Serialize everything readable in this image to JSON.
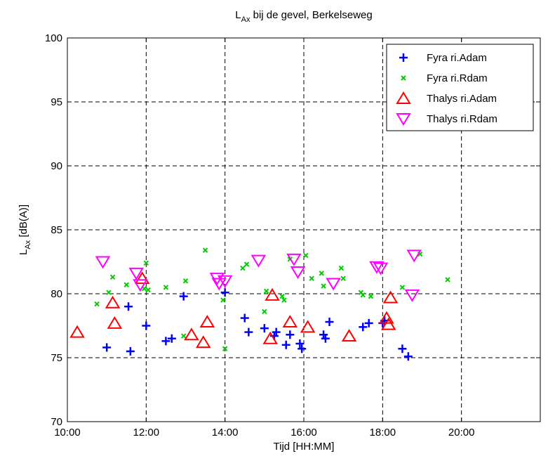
{
  "chart_data": {
    "type": "scatter",
    "title": "L",
    "title_sub": "Ax",
    "title_rest": " bij de gevel, Berkelseweg",
    "xlabel": "Tijd [HH:MM]",
    "ylabel": "L",
    "ylabel_sub": "Ax",
    "ylabel_rest": " [dB(A)]",
    "xlim": [
      "10:00",
      "22:00"
    ],
    "ylim": [
      70,
      100
    ],
    "x_ticks": [
      "10:00",
      "12:00",
      "14:00",
      "16:00",
      "18:00",
      "20:00"
    ],
    "y_ticks": [
      70,
      75,
      80,
      85,
      90,
      95,
      100
    ],
    "grid": true,
    "legend_position": "top-right",
    "series": [
      {
        "name": "Fyra ri.Adam",
        "marker": "plus",
        "color": "#0000ff",
        "points": [
          [
            "11:00",
            75.8
          ],
          [
            "11:33",
            79.0
          ],
          [
            "11:36",
            75.5
          ],
          [
            "12:00",
            77.5
          ],
          [
            "12:30",
            76.3
          ],
          [
            "12:39",
            76.5
          ],
          [
            "12:57",
            79.8
          ],
          [
            "14:00",
            80.1
          ],
          [
            "14:30",
            78.1
          ],
          [
            "14:36",
            77.0
          ],
          [
            "15:00",
            77.3
          ],
          [
            "15:15",
            76.7
          ],
          [
            "15:18",
            77.0
          ],
          [
            "15:33",
            76.0
          ],
          [
            "15:39",
            76.8
          ],
          [
            "15:54",
            76.1
          ],
          [
            "15:57",
            75.7
          ],
          [
            "16:30",
            76.8
          ],
          [
            "16:33",
            76.5
          ],
          [
            "16:39",
            77.8
          ],
          [
            "17:30",
            77.4
          ],
          [
            "17:39",
            77.7
          ],
          [
            "18:00",
            77.7
          ],
          [
            "18:03",
            77.9
          ],
          [
            "18:30",
            75.7
          ],
          [
            "18:39",
            75.1
          ]
        ]
      },
      {
        "name": "Fyra ri.Rdam",
        "marker": "x",
        "color": "#00cc00",
        "points": [
          [
            "10:45",
            79.2
          ],
          [
            "11:03",
            80.1
          ],
          [
            "11:09",
            81.3
          ],
          [
            "11:30",
            80.7
          ],
          [
            "11:57",
            80.4
          ],
          [
            "12:00",
            82.4
          ],
          [
            "12:03",
            80.3
          ],
          [
            "12:30",
            80.5
          ],
          [
            "12:57",
            76.7
          ],
          [
            "13:00",
            81.0
          ],
          [
            "13:30",
            83.4
          ],
          [
            "13:57",
            79.5
          ],
          [
            "14:00",
            75.7
          ],
          [
            "14:27",
            82.0
          ],
          [
            "14:33",
            82.3
          ],
          [
            "15:00",
            78.6
          ],
          [
            "15:03",
            80.2
          ],
          [
            "15:27",
            79.8
          ],
          [
            "15:30",
            79.5
          ],
          [
            "15:39",
            82.7
          ],
          [
            "16:03",
            83.0
          ],
          [
            "16:12",
            81.2
          ],
          [
            "16:27",
            81.6
          ],
          [
            "16:30",
            80.6
          ],
          [
            "16:57",
            82.0
          ],
          [
            "17:00",
            81.2
          ],
          [
            "17:27",
            80.1
          ],
          [
            "17:30",
            79.9
          ],
          [
            "17:42",
            79.8
          ],
          [
            "18:30",
            80.5
          ],
          [
            "18:57",
            83.1
          ],
          [
            "19:39",
            81.1
          ]
        ]
      },
      {
        "name": "Thalys ri.Adam",
        "marker": "triangle-up",
        "color": "#ff0000",
        "points": [
          [
            "10:15",
            77.0
          ],
          [
            "11:09",
            79.3
          ],
          [
            "11:12",
            77.7
          ],
          [
            "11:54",
            81.2
          ],
          [
            "13:09",
            76.8
          ],
          [
            "13:27",
            76.2
          ],
          [
            "13:33",
            77.8
          ],
          [
            "15:12",
            79.9
          ],
          [
            "15:09",
            76.5
          ],
          [
            "15:39",
            77.8
          ],
          [
            "16:06",
            77.4
          ],
          [
            "17:09",
            76.7
          ],
          [
            "18:06",
            78.1
          ],
          [
            "18:09",
            77.6
          ],
          [
            "18:12",
            79.7
          ]
        ]
      },
      {
        "name": "Thalys ri.Rdam",
        "marker": "triangle-down",
        "color": "#ff00ff",
        "points": [
          [
            "10:54",
            82.5
          ],
          [
            "11:45",
            81.6
          ],
          [
            "11:51",
            80.7
          ],
          [
            "13:48",
            81.2
          ],
          [
            "13:51",
            80.8
          ],
          [
            "14:00",
            81.0
          ],
          [
            "14:51",
            82.6
          ],
          [
            "15:45",
            82.7
          ],
          [
            "15:51",
            81.7
          ],
          [
            "16:45",
            80.8
          ],
          [
            "17:51",
            82.1
          ],
          [
            "17:57",
            82.0
          ],
          [
            "18:45",
            79.9
          ],
          [
            "18:48",
            83.0
          ]
        ]
      }
    ]
  }
}
